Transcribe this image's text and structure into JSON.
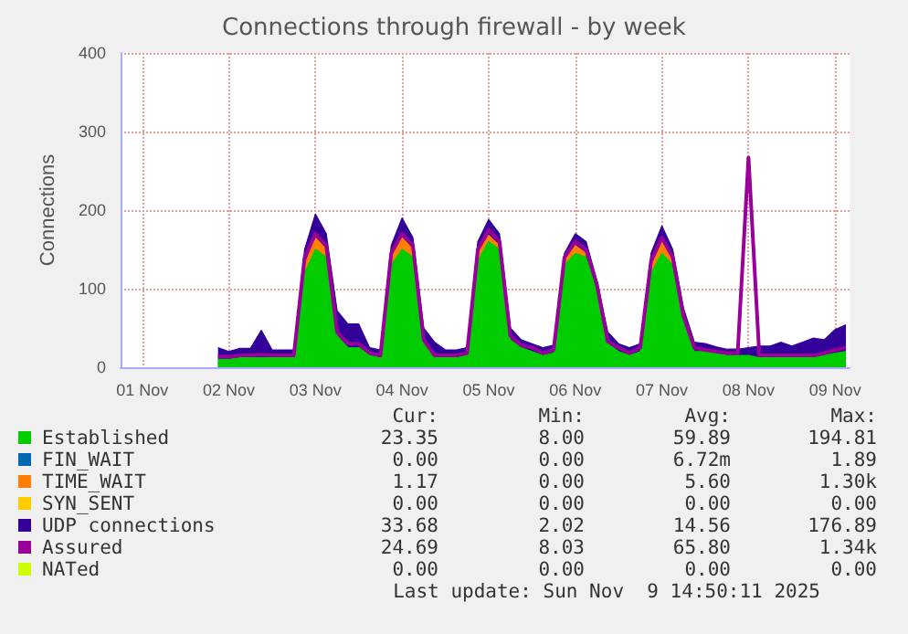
{
  "chart_data": {
    "type": "area",
    "title": "Connections through firewall - by week",
    "ylabel": "Connections",
    "stacked": true,
    "grid": true,
    "legend": "bottom",
    "marker": "none",
    "xlim": [
      "2025-11-01T06:00",
      "2025-11-09T16:00"
    ],
    "xticks": [
      {
        "value": "2025-11-01T12:00",
        "label": "01 Nov"
      },
      {
        "value": "2025-11-02T12:00",
        "label": "02 Nov"
      },
      {
        "value": "2025-11-03T12:00",
        "label": "03 Nov"
      },
      {
        "value": "2025-11-04T12:00",
        "label": "04 Nov"
      },
      {
        "value": "2025-11-05T12:00",
        "label": "05 Nov"
      },
      {
        "value": "2025-11-06T12:00",
        "label": "06 Nov"
      },
      {
        "value": "2025-11-07T12:00",
        "label": "07 Nov"
      },
      {
        "value": "2025-11-08T12:00",
        "label": "08 Nov"
      },
      {
        "value": "2025-11-09T12:00",
        "label": "09 Nov"
      }
    ],
    "ylim": [
      0,
      400
    ],
    "yticks": [
      0,
      100,
      200,
      300,
      400
    ],
    "x": [
      "2025-11-02T09:00",
      "2025-11-02T12:00",
      "2025-11-02T15:00",
      "2025-11-02T18:00",
      "2025-11-02T21:00",
      "2025-11-03T00:00",
      "2025-11-03T03:00",
      "2025-11-03T06:00",
      "2025-11-03T09:00",
      "2025-11-03T12:00",
      "2025-11-03T15:00",
      "2025-11-03T18:00",
      "2025-11-03T21:00",
      "2025-11-04T00:00",
      "2025-11-04T03:00",
      "2025-11-04T06:00",
      "2025-11-04T09:00",
      "2025-11-04T12:00",
      "2025-11-04T15:00",
      "2025-11-04T18:00",
      "2025-11-04T21:00",
      "2025-11-05T00:00",
      "2025-11-05T03:00",
      "2025-11-05T06:00",
      "2025-11-05T09:00",
      "2025-11-05T12:00",
      "2025-11-05T15:00",
      "2025-11-05T18:00",
      "2025-11-05T21:00",
      "2025-11-06T00:00",
      "2025-11-06T03:00",
      "2025-11-06T06:00",
      "2025-11-06T09:00",
      "2025-11-06T12:00",
      "2025-11-06T15:00",
      "2025-11-06T18:00",
      "2025-11-06T21:00",
      "2025-11-07T00:00",
      "2025-11-07T03:00",
      "2025-11-07T06:00",
      "2025-11-07T09:00",
      "2025-11-07T12:00",
      "2025-11-07T15:00",
      "2025-11-07T18:00",
      "2025-11-07T21:00",
      "2025-11-08T00:00",
      "2025-11-08T03:00",
      "2025-11-08T06:00",
      "2025-11-08T09:00",
      "2025-11-08T12:00",
      "2025-11-08T15:00",
      "2025-11-08T18:00",
      "2025-11-08T21:00",
      "2025-11-09T00:00",
      "2025-11-09T03:00",
      "2025-11-09T06:00",
      "2025-11-09T09:00",
      "2025-11-09T12:00",
      "2025-11-09T15:00"
    ],
    "series": [
      {
        "name": "Established",
        "color": "#00cc00",
        "values": [
          10,
          10,
          12,
          12,
          12,
          12,
          12,
          12,
          120,
          150,
          140,
          40,
          25,
          25,
          15,
          12,
          130,
          150,
          140,
          30,
          12,
          12,
          12,
          15,
          135,
          160,
          150,
          35,
          25,
          20,
          15,
          18,
          130,
          145,
          140,
          100,
          30,
          20,
          15,
          20,
          120,
          145,
          130,
          60,
          20,
          20,
          18,
          15,
          15,
          15,
          12,
          12,
          12,
          12,
          12,
          12,
          15,
          18,
          20
        ]
      },
      {
        "name": "FIN_WAIT",
        "color": "#0066b3",
        "values": [
          null,
          null,
          null,
          null,
          null,
          null,
          null,
          null,
          null,
          null,
          null,
          null,
          null,
          null,
          null,
          null,
          null,
          null,
          null,
          null,
          null,
          null,
          null,
          null,
          null,
          null,
          null,
          null,
          null,
          null,
          null,
          null,
          null,
          null,
          null,
          null,
          null,
          null,
          null,
          null,
          null,
          null,
          null,
          null,
          null,
          null,
          null,
          null,
          null,
          null,
          null,
          null,
          null,
          null,
          null,
          null,
          null,
          null,
          null
        ]
      },
      {
        "name": "TIME_WAIT",
        "color": "#ff8000",
        "values": [
          null,
          null,
          null,
          null,
          null,
          null,
          null,
          null,
          10,
          15,
          10,
          2,
          null,
          null,
          null,
          null,
          10,
          15,
          10,
          null,
          null,
          null,
          null,
          null,
          10,
          8,
          5,
          null,
          null,
          null,
          null,
          null,
          5,
          10,
          5,
          null,
          null,
          null,
          null,
          null,
          10,
          15,
          5,
          null,
          null,
          null,
          null,
          null,
          null,
          null,
          null,
          null,
          null,
          null,
          null,
          null,
          null,
          null,
          null
        ]
      },
      {
        "name": "SYN_SENT",
        "color": "#ffcc00",
        "values": [
          null,
          null,
          null,
          null,
          null,
          null,
          null,
          null,
          null,
          null,
          null,
          null,
          null,
          null,
          null,
          null,
          null,
          null,
          null,
          null,
          null,
          null,
          null,
          null,
          null,
          null,
          null,
          null,
          null,
          null,
          null,
          null,
          null,
          null,
          null,
          null,
          null,
          null,
          null,
          null,
          null,
          null,
          null,
          null,
          null,
          null,
          null,
          null,
          null,
          null,
          null,
          null,
          null,
          null,
          null,
          null,
          null,
          null,
          null
        ]
      },
      {
        "name": "UDP connections",
        "color": "#330099",
        "values": [
          15,
          10,
          12,
          12,
          35,
          10,
          10,
          10,
          20,
          30,
          20,
          30,
          30,
          30,
          10,
          10,
          15,
          25,
          15,
          20,
          20,
          10,
          10,
          10,
          15,
          20,
          15,
          15,
          10,
          10,
          10,
          10,
          10,
          15,
          15,
          10,
          15,
          10,
          10,
          10,
          15,
          20,
          15,
          15,
          12,
          10,
          8,
          8,
          8,
          10,
          15,
          15,
          20,
          15,
          20,
          25,
          20,
          30,
          34
        ]
      },
      {
        "name": "Assured",
        "color": "#990099",
        "type": "line",
        "values": [
          14,
          13,
          15,
          15,
          16,
          15,
          15,
          15,
          140,
          170,
          155,
          45,
          30,
          30,
          18,
          15,
          145,
          170,
          155,
          35,
          15,
          15,
          15,
          18,
          150,
          175,
          160,
          40,
          28,
          25,
          18,
          22,
          140,
          160,
          150,
          105,
          33,
          25,
          18,
          25,
          135,
          165,
          140,
          65,
          25,
          22,
          20,
          18,
          18,
          267,
          15,
          15,
          15,
          15,
          15,
          15,
          18,
          22,
          25
        ]
      },
      {
        "name": "NATed",
        "color": "#ccff00",
        "values": [
          null,
          null,
          null,
          null,
          null,
          null,
          null,
          null,
          null,
          null,
          null,
          null,
          null,
          null,
          null,
          null,
          null,
          null,
          null,
          null,
          null,
          null,
          null,
          null,
          null,
          null,
          null,
          null,
          null,
          null,
          null,
          null,
          null,
          null,
          null,
          null,
          null,
          null,
          null,
          null,
          null,
          null,
          null,
          null,
          null,
          null,
          null,
          null,
          null,
          null,
          null,
          null,
          null,
          null,
          null,
          null,
          null,
          null,
          null
        ]
      }
    ],
    "annotations": [
      "Cur:",
      "Min:",
      "Avg:",
      "Max:",
      "23.35",
      "8.00",
      "59.89",
      "194.81",
      "0.00",
      "0.00",
      "6.72m",
      "1.89",
      "1.17",
      "0.00",
      "5.60",
      "1.30k",
      "0.00",
      "0.00",
      "0.00",
      "0.00",
      "33.68",
      "2.02",
      "14.56",
      "176.89",
      "24.69",
      "8.03",
      "65.80",
      "1.34k",
      "0.00",
      "0.00",
      "0.00",
      "0.00",
      "Last update: Sun Nov  9 14:50:11 2025"
    ]
  }
}
